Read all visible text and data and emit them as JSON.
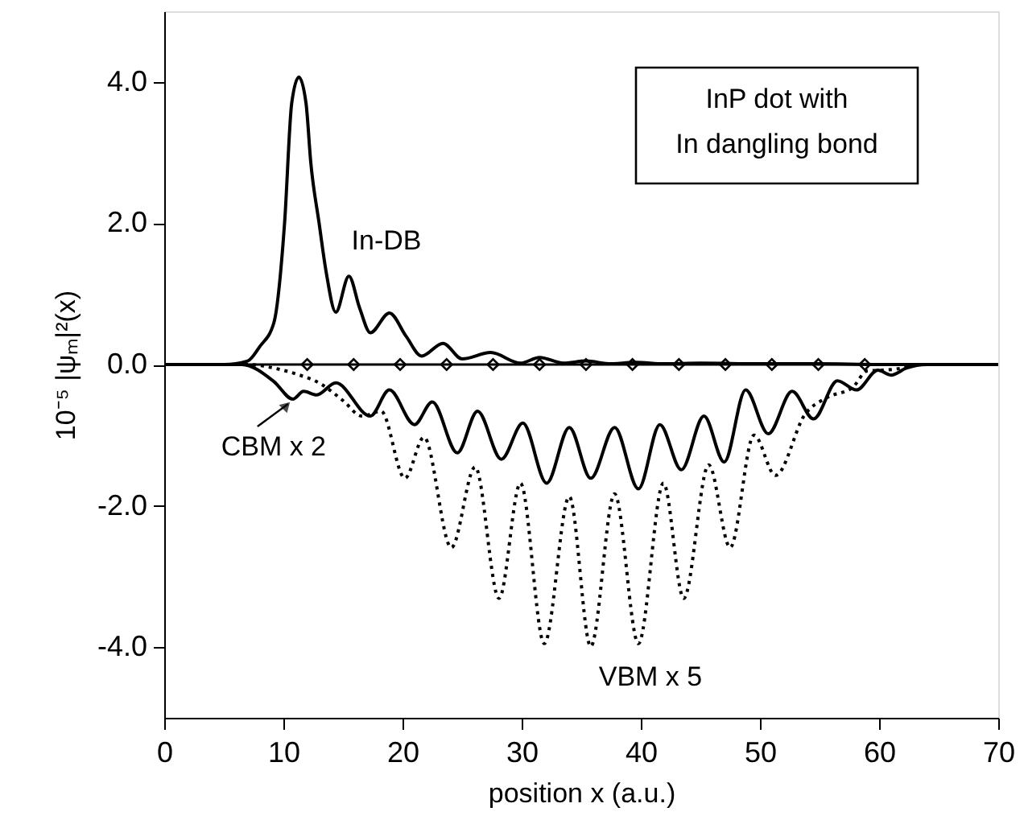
{
  "chart_data": {
    "type": "line",
    "xlabel": "position x (a.u.)",
    "ylabel": "10⁻⁵  |ψₘ|²(x)",
    "xlim": [
      0,
      70
    ],
    "xticks": [
      0,
      10,
      20,
      30,
      40,
      50,
      60,
      70
    ],
    "ylim": [
      -5,
      5
    ],
    "yticks": [
      {
        "value": -4,
        "label": "-4.0"
      },
      {
        "value": -2,
        "label": "-2.0"
      },
      {
        "value": 0,
        "label": "0.0"
      },
      {
        "value": 2,
        "label": "2.0"
      },
      {
        "value": 4,
        "label": "4.0"
      }
    ],
    "grid": false,
    "ref_lines": [
      {
        "axis": "y",
        "value": 0,
        "color": "#000000",
        "line_style": "solid"
      }
    ],
    "series": [
      {
        "color": "#000000",
        "line_style": "solid",
        "x": [
          0,
          5,
          7,
          8,
          9.2,
          10.1,
          10.7,
          11.3,
          11.9,
          12.3,
          13.0,
          13.6,
          14.4,
          15.5,
          16.4,
          17.3,
          18.9,
          20.3,
          21.6,
          23.4,
          25.0,
          27.4,
          29.9,
          31.5,
          33.5,
          35.4,
          37.5,
          39.5,
          42,
          45,
          50,
          55,
          60,
          70
        ],
        "values": [
          0,
          0,
          0.05,
          0.25,
          0.59,
          2.0,
          3.7,
          4.07,
          3.7,
          2.86,
          2.0,
          1.3,
          0.74,
          1.25,
          0.8,
          0.45,
          0.73,
          0.4,
          0.12,
          0.3,
          0.08,
          0.17,
          0.02,
          0.1,
          0.02,
          0.05,
          0.01,
          0.03,
          0.01,
          0.02,
          0.01,
          0.01,
          0,
          0
        ]
      },
      {
        "color": "#000000",
        "line_style": "solid",
        "x": [
          0,
          5,
          6.5,
          9.2,
          10.8,
          11.7,
          12.8,
          14.4,
          17.3,
          18.9,
          21.0,
          22.5,
          24.6,
          26.3,
          28.3,
          30.1,
          32.1,
          34.0,
          35.8,
          37.8,
          39.8,
          41.6,
          43.4,
          45.3,
          47.0,
          48.8,
          50.7,
          52.7,
          54.5,
          56.5,
          58.1,
          59.9,
          61.0,
          62.3,
          64,
          70
        ],
        "values": [
          0,
          0,
          0,
          -0.24,
          -0.49,
          -0.38,
          -0.43,
          -0.26,
          -0.73,
          -0.36,
          -0.85,
          -0.53,
          -1.25,
          -0.66,
          -1.34,
          -0.83,
          -1.68,
          -0.89,
          -1.61,
          -0.89,
          -1.76,
          -0.85,
          -1.49,
          -0.73,
          -1.38,
          -0.36,
          -0.98,
          -0.38,
          -0.77,
          -0.23,
          -0.36,
          -0.08,
          -0.15,
          -0.05,
          0,
          0
        ]
      },
      {
        "color": "#000000",
        "line_style": "dotted",
        "x": [
          0,
          7,
          9.2,
          11.0,
          13.2,
          15.0,
          16.6,
          18.2,
          20.2,
          21.8,
          24.1,
          26.1,
          28.1,
          29.9,
          31.9,
          34.0,
          35.8,
          37.8,
          39.8,
          41.9,
          43.6,
          45.7,
          47.5,
          49.5,
          51.3,
          53.8,
          55.6,
          57.8,
          59.0,
          60.3,
          61.9,
          63,
          70
        ],
        "values": [
          0,
          0,
          -0.05,
          -0.13,
          -0.28,
          -0.51,
          -0.73,
          -0.66,
          -1.61,
          -1.03,
          -2.59,
          -1.45,
          -3.31,
          -1.68,
          -3.95,
          -1.87,
          -3.99,
          -1.83,
          -3.95,
          -1.68,
          -3.31,
          -1.42,
          -2.59,
          -1.0,
          -1.57,
          -0.7,
          -0.47,
          -0.32,
          -0.09,
          -0.08,
          -0.05,
          0,
          0
        ]
      },
      {
        "type": "scatter",
        "color": "#000000",
        "marker": "diamond",
        "x": [
          12.0,
          15.9,
          19.8,
          23.7,
          27.6,
          31.5,
          35.4,
          39.3,
          43.2,
          47.1,
          51.0,
          54.9,
          58.8
        ],
        "values": [
          0,
          0,
          0,
          0,
          0,
          0,
          0,
          0,
          0,
          0,
          0,
          0,
          0
        ]
      }
    ],
    "annotations": [
      "In-DB",
      {
        "text": "CBM x 2",
        "x": 10.8,
        "y": -0.49
      },
      "VBM x 5",
      "InP dot with\nIn dangling bond"
    ]
  }
}
